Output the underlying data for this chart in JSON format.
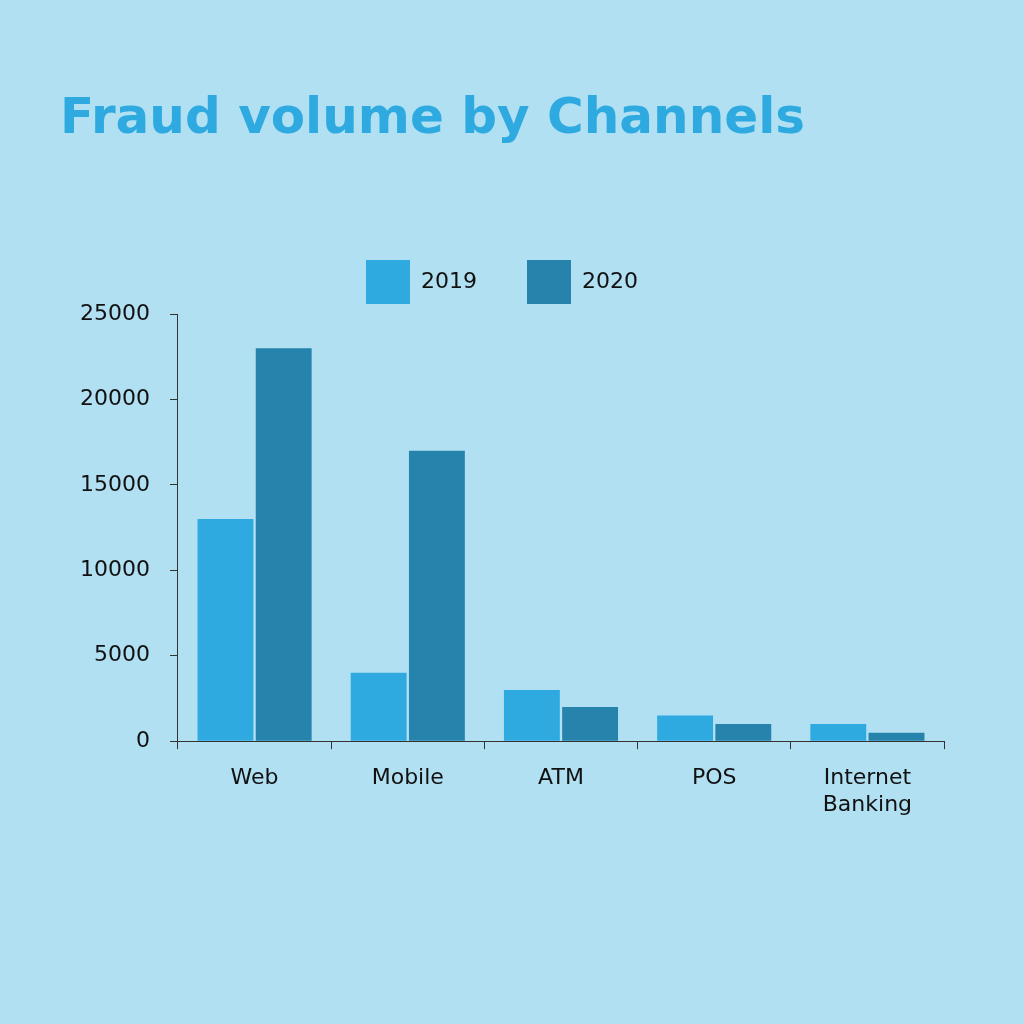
{
  "chart_data": {
    "type": "bar",
    "title": "Fraud volume by Channels",
    "categories": [
      "Web",
      "Mobile",
      "ATM",
      "POS",
      "Internet Banking"
    ],
    "series": [
      {
        "name": "2019",
        "color": "#2eaae1",
        "values": [
          13000,
          4000,
          3000,
          1500,
          1000
        ]
      },
      {
        "name": "2020",
        "color": "#2683ab",
        "values": [
          23000,
          17000,
          2000,
          1000,
          500
        ]
      }
    ],
    "ylim": [
      0,
      25000
    ],
    "yticks": [
      0,
      5000,
      10000,
      15000,
      20000,
      25000
    ],
    "grid": false,
    "legend": "top"
  }
}
